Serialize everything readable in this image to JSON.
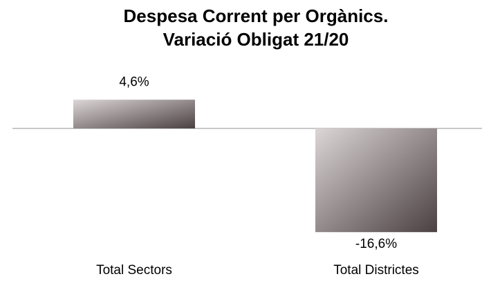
{
  "chart_data": {
    "type": "bar",
    "title": "Despesa Corrent per Orgànics. Variació Obligat 21/20",
    "categories": [
      "Total Sectors",
      "Total Districtes"
    ],
    "values": [
      4.6,
      -16.6
    ],
    "value_labels": [
      "4,6%",
      "-16,6%"
    ]
  }
}
